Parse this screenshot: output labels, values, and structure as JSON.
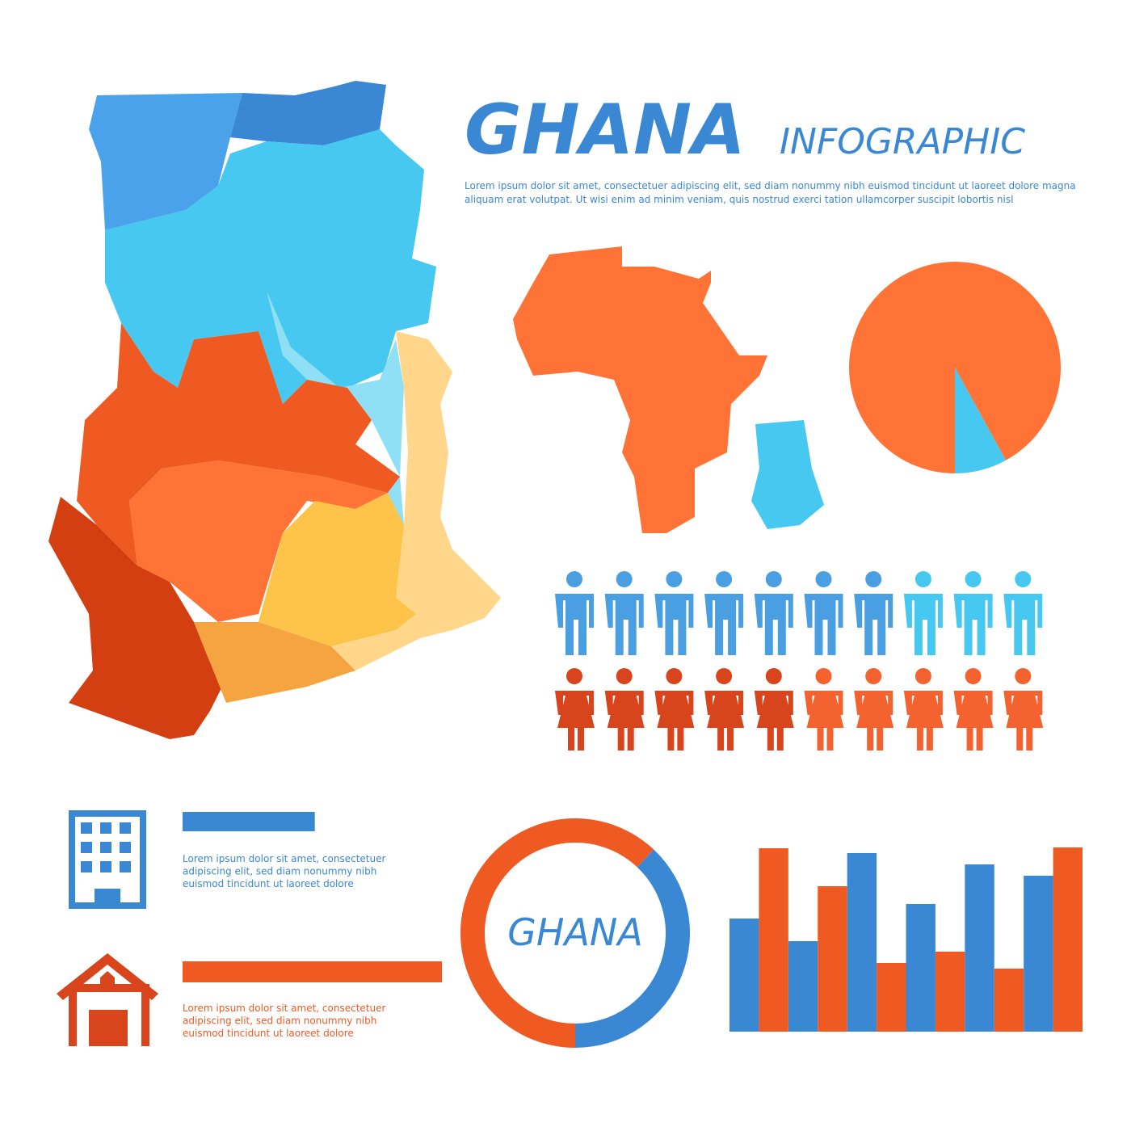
{
  "header": {
    "title": "GHANA",
    "subtitle": "INFOGRAPHIC",
    "description": [
      "Lorem ipsum dolor sit amet, consectetuer adipiscing elit, sed diam nonummy nibh euismod tincidunt ut laoreet dolore magna",
      "aliquam erat volutpat. Ut wisi enim ad minim veniam, quis nostrud exerci tation ullamcorper suscipit lobortis nisl"
    ]
  },
  "chart_data": [
    {
      "type": "pie",
      "values": [
        8,
        92
      ],
      "colors": [
        "#47c8f0",
        "#ff7337"
      ]
    },
    {
      "type": "pictograph",
      "rows": [
        {
          "icon": "man",
          "values": [
            7,
            3
          ],
          "colors": [
            "#4a9fe3",
            "#47c8f0"
          ]
        },
        {
          "icon": "woman",
          "values": [
            5,
            5
          ],
          "colors": [
            "#d8441b",
            "#f46230"
          ]
        }
      ]
    },
    {
      "type": "hbar",
      "values": [
        51,
        100
      ],
      "xlim": [
        0,
        100
      ],
      "colors": [
        "#3a87d4",
        "#ef5a22"
      ],
      "texts": [
        [
          "Lorem ipsum dolor sit amet, consectetuer",
          "adipiscing elit, sed diam nonummy nibh",
          "euismod tincidunt ut laoreet dolore"
        ],
        [
          "Lorem ipsum dolor sit amet, consectetuer",
          "adipiscing elit, sed diam nonummy nibh",
          "euismod tincidunt ut laoreet dolore"
        ]
      ]
    },
    {
      "type": "donut",
      "label": "GHANA",
      "values": [
        38,
        62
      ],
      "colors": [
        "#3a87d4",
        "#ef5a22"
      ]
    },
    {
      "type": "bar",
      "ylim": [
        0,
        240
      ],
      "series": [
        {
          "color": "#3a87d4",
          "values": [
            140,
            112,
            221,
            158,
            207,
            193
          ]
        },
        {
          "color": "#ef5a22",
          "values": [
            227,
            180,
            85,
            99,
            78,
            228
          ]
        }
      ]
    }
  ]
}
